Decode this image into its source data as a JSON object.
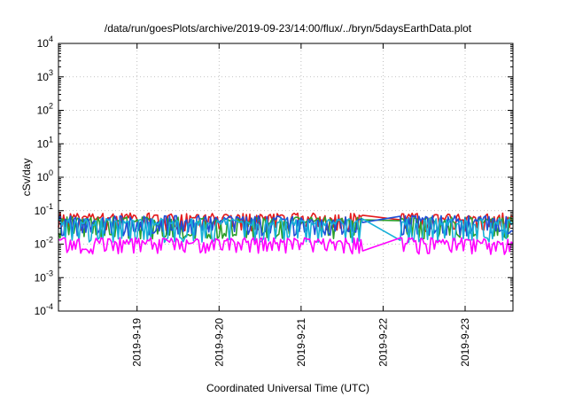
{
  "chart_data": {
    "type": "line",
    "title": "/data/run/goesPlots/archive/2019-09-23/14:00/flux/../bryn/5daysEarthData.plot",
    "xlabel": "Coordinated Universal Time (UTC)",
    "ylabel": "cSv/day",
    "y_scale": "log",
    "ylim": [
      0.0001,
      10000
    ],
    "xlim": [
      "2019-09-18T01:00",
      "2019-09-23T14:00"
    ],
    "grid": true,
    "y_ticks": [
      {
        "value": 0.0001,
        "base": "10",
        "exp": "-4"
      },
      {
        "value": 0.001,
        "base": "10",
        "exp": "-3"
      },
      {
        "value": 0.01,
        "base": "10",
        "exp": "-2"
      },
      {
        "value": 0.1,
        "base": "10",
        "exp": "-1"
      },
      {
        "value": 1,
        "base": "10",
        "exp": "0"
      },
      {
        "value": 10,
        "base": "10",
        "exp": "1"
      },
      {
        "value": 100,
        "base": "10",
        "exp": "2"
      },
      {
        "value": 1000,
        "base": "10",
        "exp": "3"
      },
      {
        "value": 10000,
        "base": "10",
        "exp": "4"
      }
    ],
    "x_ticks": [
      {
        "value": "2019-09-19T00:00",
        "label": "2019-9-19"
      },
      {
        "value": "2019-09-20T00:00",
        "label": "2019-9-20"
      },
      {
        "value": "2019-09-21T00:00",
        "label": "2019-9-21"
      },
      {
        "value": "2019-09-22T00:00",
        "label": "2019-9-22"
      },
      {
        "value": "2019-09-23T00:00",
        "label": "2019-9-23"
      }
    ],
    "series": [
      {
        "color": "#e41a1c",
        "baseline": 0.065,
        "low": 0.03
      },
      {
        "color": "#2ca02c",
        "baseline": 0.05,
        "low": 0.018
      },
      {
        "color": "#1f4fd6",
        "baseline": 0.055,
        "low": 0.022
      },
      {
        "color": "#17b0d8",
        "baseline": 0.045,
        "low": 0.014
      },
      {
        "color": "#ff00ff",
        "baseline": 0.012,
        "low": 0.006
      }
    ],
    "gaps": [
      {
        "start": "2019-09-21T18:00",
        "end": "2019-09-22T05:00"
      }
    ]
  }
}
